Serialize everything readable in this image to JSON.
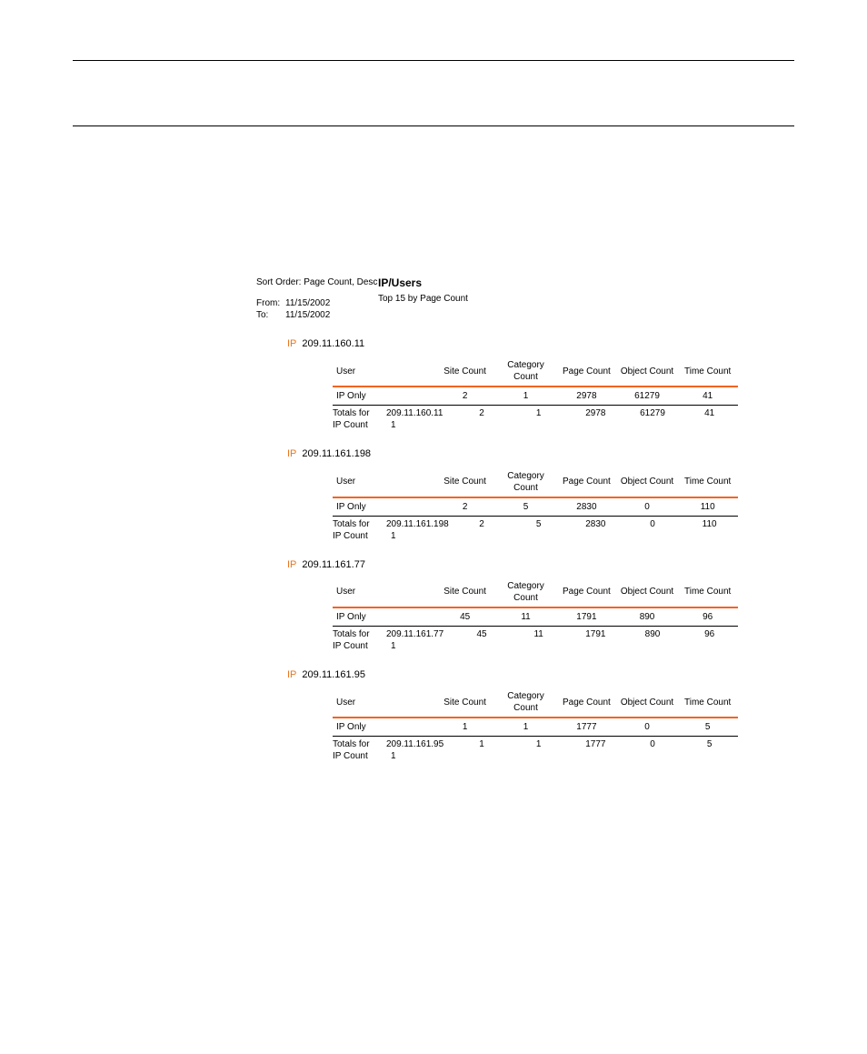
{
  "header": {
    "rule_color": "#000000"
  },
  "meta": {
    "sort_order_label": "Sort Order:",
    "sort_order_value": "Page Count, Desc",
    "from_label": "From:",
    "from_value": "11/15/2002",
    "to_label": "To:",
    "to_value": "11/15/2002"
  },
  "title": {
    "main": "IP/Users",
    "subtitle": "Top 15 by Page Count"
  },
  "columns": {
    "user": "User",
    "site_count": "Site Count",
    "category_count": "Category Count",
    "page_count": "Page Count",
    "object_count": "Object Count",
    "time_count": "Time Count"
  },
  "labels": {
    "ip": "IP",
    "totals_for": "Totals for",
    "ip_count": "IP Count"
  },
  "colors": {
    "accent": "#f26522",
    "ip_label": "#e87722",
    "text": "#000000",
    "background": "#ffffff"
  },
  "sections": [
    {
      "ip": "209.11.160.11",
      "rows": [
        {
          "user": "IP Only",
          "site": "2",
          "category": "1",
          "page": "2978",
          "object": "61279",
          "time": "41"
        }
      ],
      "totals": {
        "site": "2",
        "category": "1",
        "page": "2978",
        "object": "61279",
        "time": "41"
      },
      "ip_count": "1"
    },
    {
      "ip": "209.11.161.198",
      "rows": [
        {
          "user": "IP Only",
          "site": "2",
          "category": "5",
          "page": "2830",
          "object": "0",
          "time": "110"
        }
      ],
      "totals": {
        "site": "2",
        "category": "5",
        "page": "2830",
        "object": "0",
        "time": "110"
      },
      "ip_count": "1"
    },
    {
      "ip": "209.11.161.77",
      "rows": [
        {
          "user": "IP Only",
          "site": "45",
          "category": "11",
          "page": "1791",
          "object": "890",
          "time": "96"
        }
      ],
      "totals": {
        "site": "45",
        "category": "11",
        "page": "1791",
        "object": "890",
        "time": "96"
      },
      "ip_count": "1"
    },
    {
      "ip": "209.11.161.95",
      "rows": [
        {
          "user": "IP Only",
          "site": "1",
          "category": "1",
          "page": "1777",
          "object": "0",
          "time": "5"
        }
      ],
      "totals": {
        "site": "1",
        "category": "1",
        "page": "1777",
        "object": "0",
        "time": "5"
      },
      "ip_count": "1"
    }
  ]
}
